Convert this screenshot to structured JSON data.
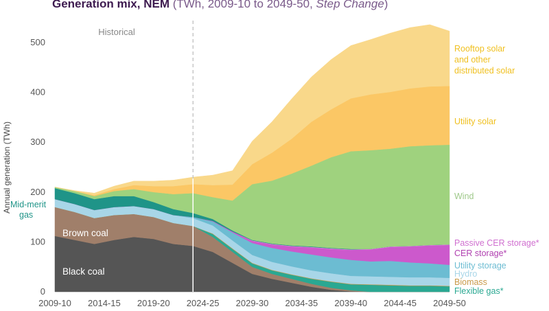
{
  "title": {
    "bold": "Generation mix, NEM",
    "light_prefix": " (TWh, 2009-10 to 2049-50, ",
    "italic": "Step Change",
    "light_suffix": ")"
  },
  "chart_data": {
    "type": "area",
    "title": "Generation mix, NEM (TWh, 2009-10 to 2049-50, Step Change)",
    "xlabel": "",
    "ylabel": "Annual generation (TWh)",
    "ylim": [
      0,
      540
    ],
    "yticks": [
      0,
      100,
      200,
      300,
      400,
      500
    ],
    "xticks": [
      "2009-10",
      "2014-15",
      "2019-20",
      "2024-25",
      "2029-30",
      "2034-35",
      "2039-40",
      "2044-45",
      "2049-50"
    ],
    "x": [
      2010,
      2012,
      2014,
      2016,
      2018,
      2020,
      2022,
      2024,
      2026,
      2028,
      2030,
      2032,
      2034,
      2036,
      2038,
      2040,
      2042,
      2044,
      2046,
      2048,
      2050
    ],
    "historical_divider": 2024,
    "annotation": "Historical",
    "series": [
      {
        "name": "Black coal",
        "color": "#555555",
        "values": [
          112,
          104,
          96,
          104,
          110,
          106,
          96,
          92,
          80,
          58,
          36,
          26,
          18,
          10,
          4,
          1,
          0,
          0,
          0,
          0,
          0
        ]
      },
      {
        "name": "Brown coal",
        "color": "#a07f6a",
        "values": [
          58,
          56,
          52,
          50,
          46,
          44,
          42,
          40,
          30,
          22,
          14,
          10,
          8,
          6,
          4,
          2,
          0,
          0,
          0,
          0,
          0
        ]
      },
      {
        "name": "Flexible gas*",
        "color": "#2aa892",
        "values": [
          0,
          0,
          0,
          0,
          0,
          0,
          0,
          0,
          6,
          6,
          7,
          7,
          8,
          10,
          12,
          12,
          14,
          13,
          12,
          12,
          11
        ]
      },
      {
        "name": "Biomass",
        "color": "#c99a4a",
        "values": [
          0,
          0,
          0,
          0,
          0,
          0,
          0,
          0,
          1,
          1,
          1,
          1,
          1,
          1,
          1,
          1,
          1,
          1,
          1,
          1,
          1
        ]
      },
      {
        "name": "Hydro",
        "color": "#a8d6e8",
        "values": [
          16,
          16,
          16,
          16,
          16,
          16,
          16,
          16,
          16,
          16,
          16,
          16,
          16,
          16,
          16,
          16,
          16,
          16,
          16,
          16,
          16
        ]
      },
      {
        "name": "Utility storage",
        "color": "#6cbcd2",
        "values": [
          0,
          0,
          0,
          0,
          0,
          0,
          0,
          2,
          8,
          16,
          24,
          28,
          30,
          32,
          32,
          32,
          30,
          32,
          30,
          28,
          26
        ]
      },
      {
        "name": "CER storage*",
        "color": "#cc59cc",
        "values": [
          0,
          0,
          0,
          0,
          0,
          0,
          0,
          0,
          1,
          2,
          4,
          7,
          10,
          14,
          17,
          20,
          24,
          28,
          32,
          36,
          40
        ]
      },
      {
        "name": "Passive CER storage*",
        "color": "#d98cd9",
        "values": [
          0,
          0,
          0,
          0,
          0,
          0,
          0,
          0,
          0,
          0,
          1,
          1,
          1,
          1,
          1,
          1,
          1,
          1,
          1,
          1,
          1
        ]
      },
      {
        "name": "Mid-merit gas",
        "color": "#1f9488",
        "values": [
          22,
          22,
          22,
          22,
          20,
          14,
          12,
          8,
          4,
          2,
          1,
          1,
          1,
          1,
          1,
          1,
          0,
          0,
          0,
          0,
          0
        ]
      },
      {
        "name": "Wind",
        "color": "#9fd27e",
        "values": [
          2,
          4,
          6,
          10,
          14,
          20,
          30,
          40,
          44,
          60,
          112,
          126,
          144,
          162,
          182,
          196,
          198,
          196,
          200,
          200,
          200
        ]
      },
      {
        "name": "Utility solar",
        "color": "#fbc765",
        "values": [
          0,
          0,
          2,
          4,
          8,
          12,
          16,
          18,
          24,
          32,
          40,
          56,
          70,
          88,
          96,
          106,
          112,
          114,
          116,
          118,
          118
        ]
      },
      {
        "name": "Rooftop solar and other distributed solar",
        "color": "#f9d88a",
        "values": [
          0,
          1,
          4,
          6,
          8,
          10,
          12,
          14,
          20,
          28,
          46,
          62,
          80,
          90,
          100,
          106,
          110,
          118,
          122,
          124,
          110
        ]
      }
    ],
    "legend_placement": "right",
    "inline_labels": [
      "Brown coal",
      "Black coal",
      "Mid-merit gas"
    ],
    "grid": false
  },
  "labels": {
    "historical": "Historical",
    "rooftop_1": "Rooftop solar",
    "rooftop_2": "and other",
    "rooftop_3": "distributed solar",
    "utility_solar": "Utility solar",
    "wind": "Wind",
    "passive_cer": "Passive CER storage*",
    "cer": "CER storage*",
    "utility_storage": "Utility storage",
    "hydro": "Hydro",
    "biomass": "Biomass",
    "flexible_gas": "Flexible gas*",
    "mid_merit_1": "Mid-merit",
    "mid_merit_2": "gas",
    "brown_coal": "Brown coal",
    "black_coal": "Black coal",
    "ylabel": "Annual generation (TWh)"
  },
  "colors": {
    "rooftop": "#f0c020",
    "utility_solar": "#f0c020",
    "wind": "#9fc98a",
    "passive_cer": "#d070d0",
    "cer": "#b040b0",
    "utility_storage": "#6cbcd2",
    "hydro": "#a8d6e8",
    "biomass": "#c99a4a",
    "flexible_gas": "#2aa892",
    "mid_merit": "#1f9488"
  }
}
